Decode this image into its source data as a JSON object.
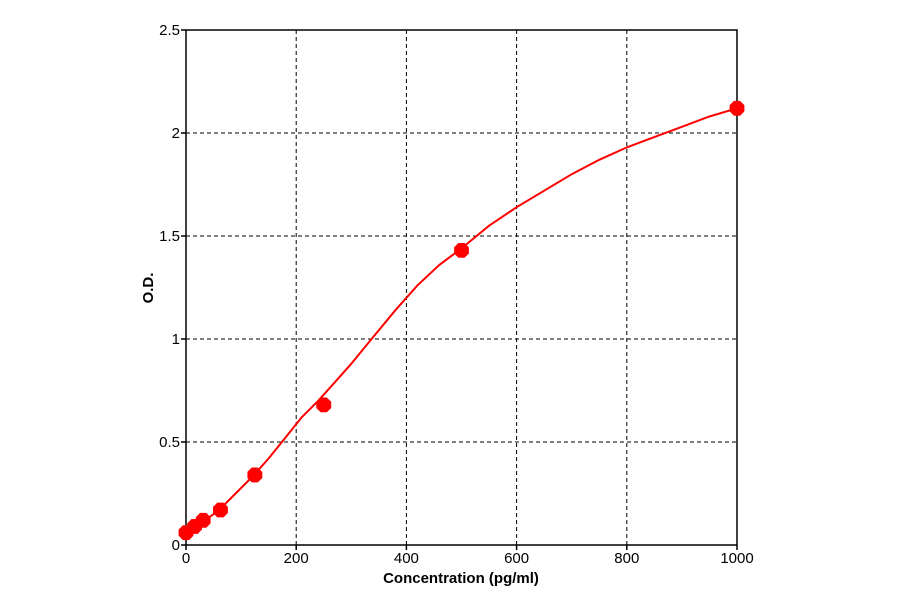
{
  "chart_data": {
    "type": "scatter",
    "xlabel": "Concentration (pg/ml)",
    "ylabel": "O.D.",
    "xlim": [
      0,
      1000
    ],
    "ylim": [
      0,
      2.5
    ],
    "x_ticks": [
      "0",
      "200",
      "400",
      "600",
      "800",
      "1000"
    ],
    "y_ticks": [
      "0",
      "0.5",
      "1",
      "1.5",
      "2",
      "2.5"
    ],
    "grid": true,
    "color": "#ff0000",
    "points": {
      "x": [
        0,
        15.6,
        31.25,
        62.5,
        125,
        250,
        500,
        1000
      ],
      "y": [
        0.06,
        0.09,
        0.12,
        0.17,
        0.34,
        0.68,
        1.43,
        2.12
      ]
    },
    "fit_curve": {
      "x": [
        0,
        30,
        60,
        90,
        120,
        150,
        180,
        210,
        240,
        270,
        300,
        340,
        380,
        420,
        460,
        500,
        550,
        600,
        650,
        700,
        750,
        800,
        850,
        900,
        950,
        1000
      ],
      "y": [
        0.06,
        0.11,
        0.17,
        0.25,
        0.33,
        0.42,
        0.52,
        0.62,
        0.7,
        0.79,
        0.88,
        1.01,
        1.14,
        1.26,
        1.36,
        1.44,
        1.55,
        1.64,
        1.72,
        1.8,
        1.87,
        1.93,
        1.98,
        2.03,
        2.08,
        2.12
      ]
    }
  }
}
